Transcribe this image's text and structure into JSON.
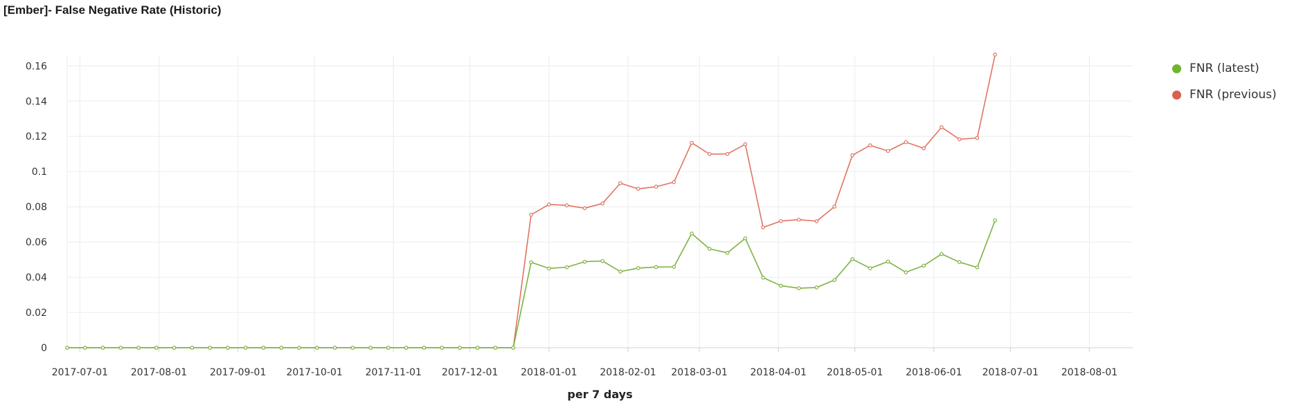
{
  "panel": {
    "title": "[Ember]- False Negative Rate (Historic)"
  },
  "colors": {
    "latest": "#7cb342",
    "previous": "#e07361",
    "grid": "#ececec",
    "axis": "#d0d0d0"
  },
  "legend": [
    {
      "label": "FNR (latest)",
      "color": "#6fb52d"
    },
    {
      "label": "FNR (previous)",
      "color": "#d9614d"
    }
  ],
  "chart_data": {
    "type": "line",
    "title": "",
    "xlabel": "per 7 days",
    "ylabel": "",
    "xlim": [
      "2017-06-26",
      "2018-08-18"
    ],
    "ylim": [
      0,
      0.166
    ],
    "yticks": [
      0,
      0.02,
      0.04,
      0.06,
      0.08,
      0.1,
      0.12,
      0.14,
      0.16
    ],
    "ytick_labels": [
      "0",
      "0.02",
      "0.04",
      "0.06",
      "0.08",
      "0.1",
      "0.12",
      "0.14",
      "0.16"
    ],
    "xticks": [
      "2017-07-01",
      "2017-08-01",
      "2017-09-01",
      "2017-10-01",
      "2017-11-01",
      "2017-12-01",
      "2018-01-01",
      "2018-02-01",
      "2018-03-01",
      "2018-04-01",
      "2018-05-01",
      "2018-06-01",
      "2018-07-01",
      "2018-08-01"
    ],
    "grid": true,
    "legend_position": "right",
    "x": [
      "2017-06-26",
      "2017-07-03",
      "2017-07-10",
      "2017-07-17",
      "2017-07-24",
      "2017-07-31",
      "2017-08-07",
      "2017-08-14",
      "2017-08-21",
      "2017-08-28",
      "2017-09-04",
      "2017-09-11",
      "2017-09-18",
      "2017-09-25",
      "2017-10-02",
      "2017-10-09",
      "2017-10-16",
      "2017-10-23",
      "2017-10-30",
      "2017-11-06",
      "2017-11-13",
      "2017-11-20",
      "2017-11-27",
      "2017-12-04",
      "2017-12-11",
      "2017-12-18",
      "2017-12-25",
      "2018-01-01",
      "2018-01-08",
      "2018-01-15",
      "2018-01-22",
      "2018-01-29",
      "2018-02-05",
      "2018-02-12",
      "2018-02-19",
      "2018-02-26",
      "2018-03-05",
      "2018-03-12",
      "2018-03-19",
      "2018-03-26",
      "2018-04-02",
      "2018-04-09",
      "2018-04-16",
      "2018-04-23",
      "2018-04-30",
      "2018-05-07",
      "2018-05-14",
      "2018-05-21",
      "2018-05-28",
      "2018-06-04",
      "2018-06-11",
      "2018-06-18",
      "2018-06-25"
    ],
    "series": [
      {
        "name": "FNR (latest)",
        "values": [
          0,
          0,
          0,
          0,
          0,
          0,
          0,
          0,
          0,
          0,
          0,
          0,
          0,
          0,
          0,
          0,
          0,
          0,
          0,
          0,
          0,
          0,
          0,
          0,
          0,
          0,
          0.0485,
          0.045,
          0.0457,
          0.0488,
          0.0492,
          0.0432,
          0.0452,
          0.0458,
          0.0459,
          0.0648,
          0.0561,
          0.0539,
          0.0621,
          0.0398,
          0.0352,
          0.0338,
          0.0342,
          0.0384,
          0.0503,
          0.0451,
          0.0489,
          0.0428,
          0.0466,
          0.0532,
          0.0486,
          0.0456,
          0.0723
        ]
      },
      {
        "name": "FNR (previous)",
        "values": [
          0,
          0,
          0,
          0,
          0,
          0,
          0,
          0,
          0,
          0,
          0,
          0,
          0,
          0,
          0,
          0,
          0,
          0,
          0,
          0,
          0,
          0,
          0,
          0,
          0,
          0,
          0.0755,
          0.0813,
          0.0808,
          0.0792,
          0.0819,
          0.0934,
          0.0902,
          0.0914,
          0.094,
          0.1163,
          0.1099,
          0.11,
          0.1155,
          0.0683,
          0.0719,
          0.0727,
          0.0718,
          0.0801,
          0.1092,
          0.1149,
          0.1117,
          0.1167,
          0.1132,
          0.1252,
          0.1183,
          0.1191,
          0.1664
        ]
      }
    ]
  }
}
